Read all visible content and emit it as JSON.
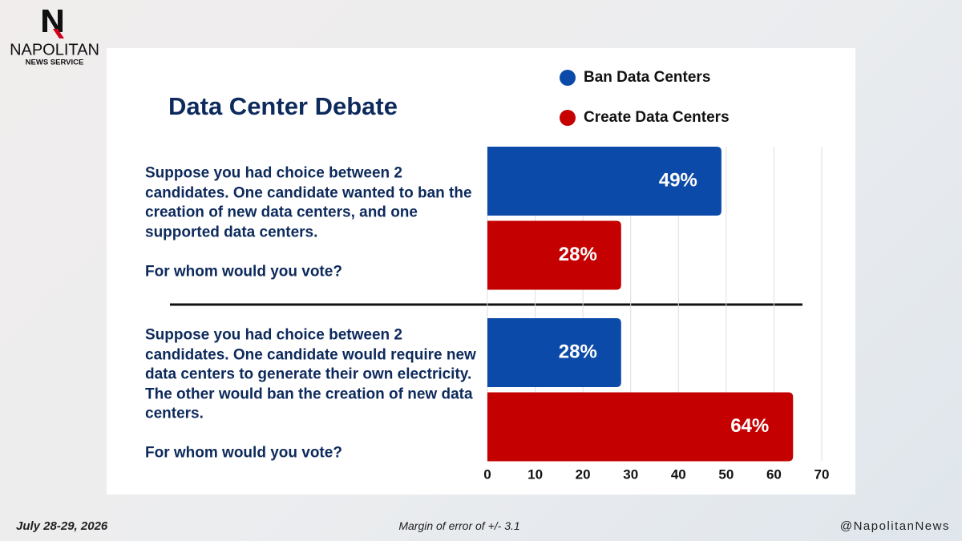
{
  "brand": {
    "name": "NAPOLITAN",
    "tagline": "NEWS SERVICE"
  },
  "chart_data": {
    "type": "hbar",
    "title": "Data Center Debate",
    "categories": [
      "Suppose you had choice between 2 candidates. One candidate wanted to ban the creation of new data centers, and one supported data centers.\n\nFor whom would you vote?",
      "Suppose you had choice between 2 candidates. One candidate would require new data centers to generate their own electricity. The other would ban the creation of new data centers.\n\nFor whom would you vote?"
    ],
    "series": [
      {
        "name": "Ban Data Centers",
        "color": "#0b4aa8",
        "values": [
          49,
          28
        ],
        "value_labels": [
          "49%",
          "28%"
        ]
      },
      {
        "name": "Create Data Centers",
        "color": "#c40000",
        "values": [
          28,
          64
        ],
        "value_labels": [
          "28%",
          "64%"
        ]
      }
    ],
    "xlim": [
      0,
      70
    ],
    "xticks": [
      0,
      10,
      20,
      30,
      40,
      50,
      60,
      70
    ],
    "grid": true,
    "legend": "top-right"
  },
  "footer": {
    "date": "July 28-29, 2026",
    "note": "Margin of error of +/- 3.1",
    "handle": "@NapolitanNews"
  }
}
